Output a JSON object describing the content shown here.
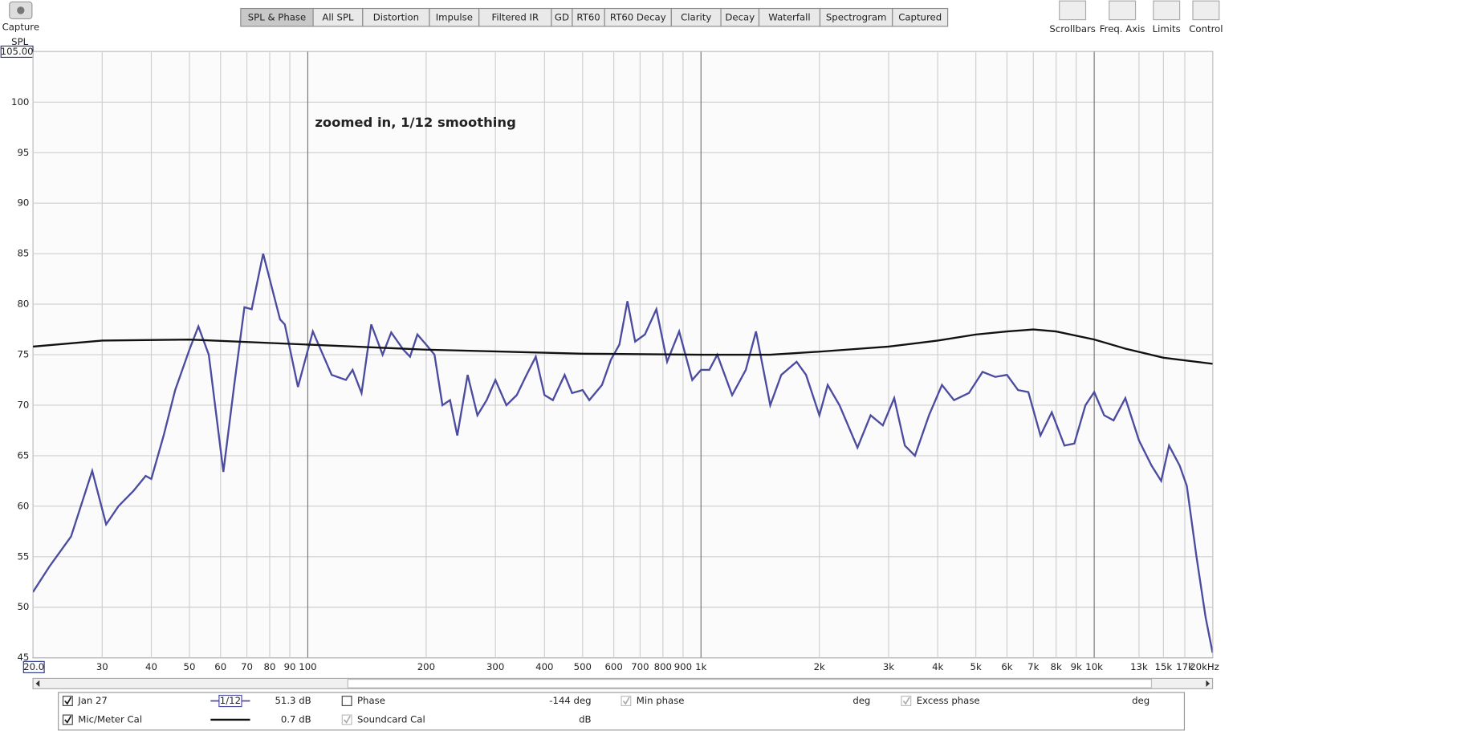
{
  "ui": {
    "capture": "Capture",
    "tabs": [
      "SPL & Phase",
      "All SPL",
      "Distortion",
      "Impulse",
      "Filtered IR",
      "GD",
      "RT60",
      "RT60 Decay",
      "Clarity",
      "Decay",
      "Waterfall",
      "Spectrogram",
      "Captured"
    ],
    "tools": [
      "Scrollbars",
      "Freq. Axis",
      "Limits",
      "Control"
    ],
    "legend": {
      "row1": {
        "name": "Jan 27",
        "smoothing": "1/12",
        "level": "51.3 dB",
        "phase": "Phase",
        "phase_value": "-144 deg",
        "min_phase": "Min phase",
        "min_phase_unit": "deg",
        "excess_phase": "Excess phase",
        "excess_phase_unit": "deg"
      },
      "row2": {
        "name": "Mic/Meter Cal",
        "level": "0.7 dB",
        "soundcard": "Soundcard Cal",
        "soundcard_unit": "dB"
      }
    }
  },
  "chart_data": {
    "type": "line",
    "ylabel": "SPL",
    "annotation": "zoomed in, 1/12 smoothing",
    "xscale": "log",
    "grid": true,
    "xlim": [
      20,
      20000
    ],
    "ylim": [
      45,
      105
    ],
    "yticks": [
      45,
      50,
      55,
      60,
      65,
      70,
      75,
      80,
      85,
      90,
      95,
      100,
      {
        "value": 105,
        "label": "105.00"
      }
    ],
    "xticks": [
      {
        "value": 20,
        "label": "20.0"
      },
      30,
      40,
      50,
      60,
      70,
      80,
      90,
      100,
      200,
      300,
      400,
      500,
      600,
      700,
      800,
      900,
      {
        "value": 1000,
        "label": "1k"
      },
      {
        "value": 2000,
        "label": "2k"
      },
      {
        "value": 3000,
        "label": "3k"
      },
      {
        "value": 4000,
        "label": "4k"
      },
      {
        "value": 5000,
        "label": "5k"
      },
      {
        "value": 6000,
        "label": "6k"
      },
      {
        "value": 7000,
        "label": "7k"
      },
      {
        "value": 8000,
        "label": "8k"
      },
      {
        "value": 9000,
        "label": "9k"
      },
      {
        "value": 10000,
        "label": "10k"
      },
      {
        "value": 13000,
        "label": "13k"
      },
      {
        "value": 15000,
        "label": "15k"
      },
      {
        "value": 17000,
        "label": "17k"
      },
      {
        "value": 20000,
        "label": "20kHz"
      }
    ],
    "series": [
      {
        "name": "Jan 27",
        "color": "#4b4ba0",
        "x": [
          20,
          22,
          25,
          28.3,
          30.7,
          33,
          36,
          38.7,
          40,
          43,
          46,
          50,
          52.7,
          56,
          61,
          65,
          69,
          72,
          77,
          85,
          87.4,
          94.4,
          103,
          115,
          125,
          130,
          137,
          145,
          155,
          163,
          175,
          182,
          190,
          200,
          210,
          220,
          230,
          240,
          255,
          270,
          285,
          300,
          320,
          340,
          360,
          380,
          400,
          420,
          450,
          470,
          500,
          520,
          560,
          590,
          620,
          650,
          680,
          720,
          770,
          820,
          880,
          950,
          1000,
          1050,
          1100,
          1200,
          1300,
          1380,
          1500,
          1600,
          1750,
          1850,
          2000,
          2100,
          2250,
          2500,
          2700,
          2900,
          3100,
          3300,
          3500,
          3800,
          4100,
          4400,
          4800,
          5200,
          5600,
          6000,
          6400,
          6800,
          7300,
          7800,
          8400,
          8900,
          9500,
          10000,
          10600,
          11200,
          12000,
          13000,
          14000,
          14800,
          15500,
          16500,
          17200,
          18200,
          19200,
          20000
        ],
        "values": [
          51.5,
          54,
          57,
          63.5,
          58.2,
          60,
          61.5,
          63,
          62.7,
          67,
          71.5,
          75.5,
          77.8,
          75,
          63.4,
          72,
          79.7,
          79.5,
          85,
          78.5,
          78,
          71.8,
          77.3,
          73,
          72.5,
          73.5,
          71.2,
          78,
          75,
          77.2,
          75.5,
          74.8,
          77,
          76,
          75,
          70,
          70.5,
          67,
          73,
          69,
          70.5,
          72.5,
          70,
          71,
          73,
          74.8,
          71,
          70.5,
          73,
          71.2,
          71.5,
          70.5,
          72,
          74.5,
          76,
          80.3,
          76.3,
          77,
          79.5,
          74.3,
          77.3,
          72.5,
          73.5,
          73.5,
          75,
          71,
          73.5,
          77.3,
          70,
          73,
          74.3,
          73,
          69,
          72,
          70,
          65.8,
          69,
          68,
          70.7,
          66,
          65,
          69,
          72,
          70.5,
          71.2,
          73.3,
          72.8,
          73,
          71.5,
          71.3,
          67,
          69.3,
          66,
          66.2,
          70,
          71.3,
          69,
          68.5,
          70.7,
          66.5,
          64,
          62.5,
          66,
          64,
          62,
          55,
          49,
          45.5
        ]
      },
      {
        "name": "Mic/Meter Cal",
        "color": "#111111",
        "x": [
          20,
          30,
          50,
          100,
          200,
          500,
          1000,
          1500,
          2000,
          3000,
          4000,
          5000,
          6000,
          7000,
          8000,
          10000,
          12000,
          15000,
          20000
        ],
        "values": [
          75.8,
          76.4,
          76.5,
          76,
          75.5,
          75.1,
          75,
          75,
          75.3,
          75.8,
          76.4,
          77,
          77.3,
          77.5,
          77.3,
          76.5,
          75.6,
          74.7,
          74.1
        ]
      }
    ]
  }
}
